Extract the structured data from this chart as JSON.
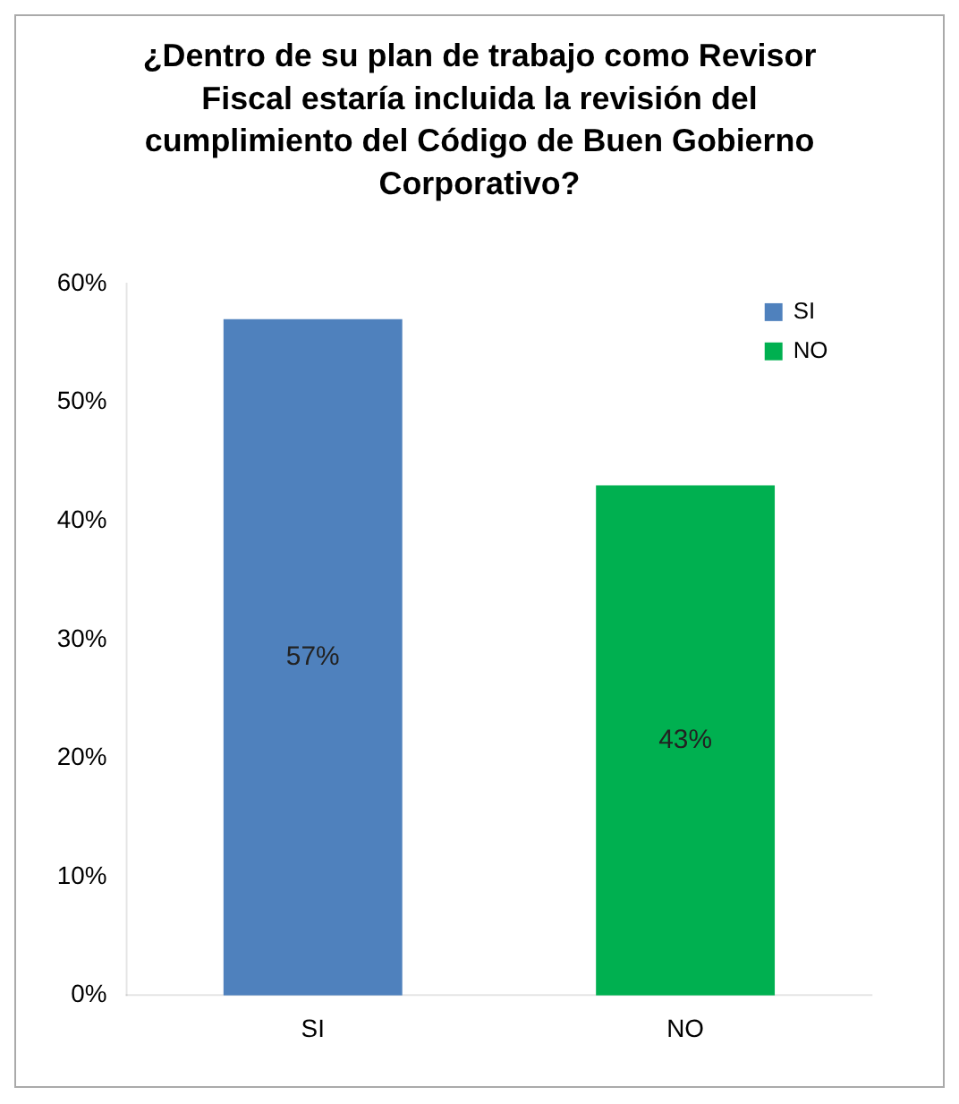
{
  "chart_data": {
    "type": "bar",
    "title": "¿Dentro de su plan de trabajo como Revisor Fiscal estaría incluida la revisión del cumplimiento del Código de Buen Gobierno Corporativo?",
    "categories": [
      "SI",
      "NO"
    ],
    "series": [
      {
        "name": "SI",
        "color": "#4f81bd",
        "values": [
          57,
          null
        ],
        "value_labels": [
          "57%",
          null
        ]
      },
      {
        "name": "NO",
        "color": "#00b050",
        "values": [
          null,
          43
        ],
        "value_labels": [
          null,
          "43%"
        ]
      }
    ],
    "ylim": [
      0,
      60
    ],
    "yticks": [
      {
        "value": 0,
        "label": "0%"
      },
      {
        "value": 10,
        "label": "10%"
      },
      {
        "value": 20,
        "label": "20%"
      },
      {
        "value": 30,
        "label": "30%"
      },
      {
        "value": 40,
        "label": "40%"
      },
      {
        "value": 50,
        "label": "50%"
      },
      {
        "value": 60,
        "label": "60%"
      }
    ],
    "grid": false,
    "legend": "top right"
  }
}
